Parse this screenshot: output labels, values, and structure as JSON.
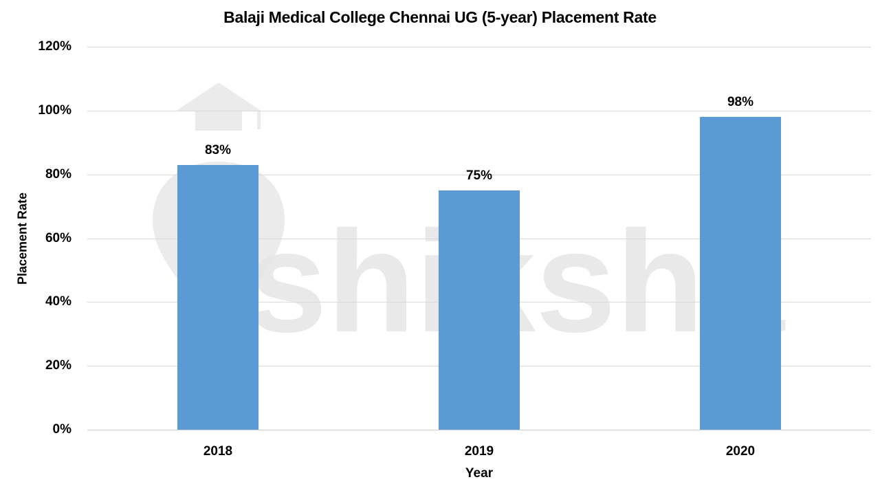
{
  "chart_data": {
    "type": "bar",
    "title": "Balaji  Medical College Chennai UG (5-year) Placement Rate",
    "xlabel": "Year",
    "ylabel": "Placement Rate",
    "categories": [
      "2018",
      "2019",
      "2020"
    ],
    "values": [
      83,
      75,
      98
    ],
    "value_labels": [
      "83%",
      "75%",
      "98%"
    ],
    "ylim": [
      0,
      120
    ],
    "yticks": [
      0,
      20,
      40,
      60,
      80,
      100,
      120
    ],
    "ytick_labels": [
      "0%",
      "20%",
      "40%",
      "60%",
      "80%",
      "100%",
      "120%"
    ],
    "grid": true,
    "legend": null,
    "bar_color": "#5b9bd5",
    "watermark": "shiksha"
  }
}
